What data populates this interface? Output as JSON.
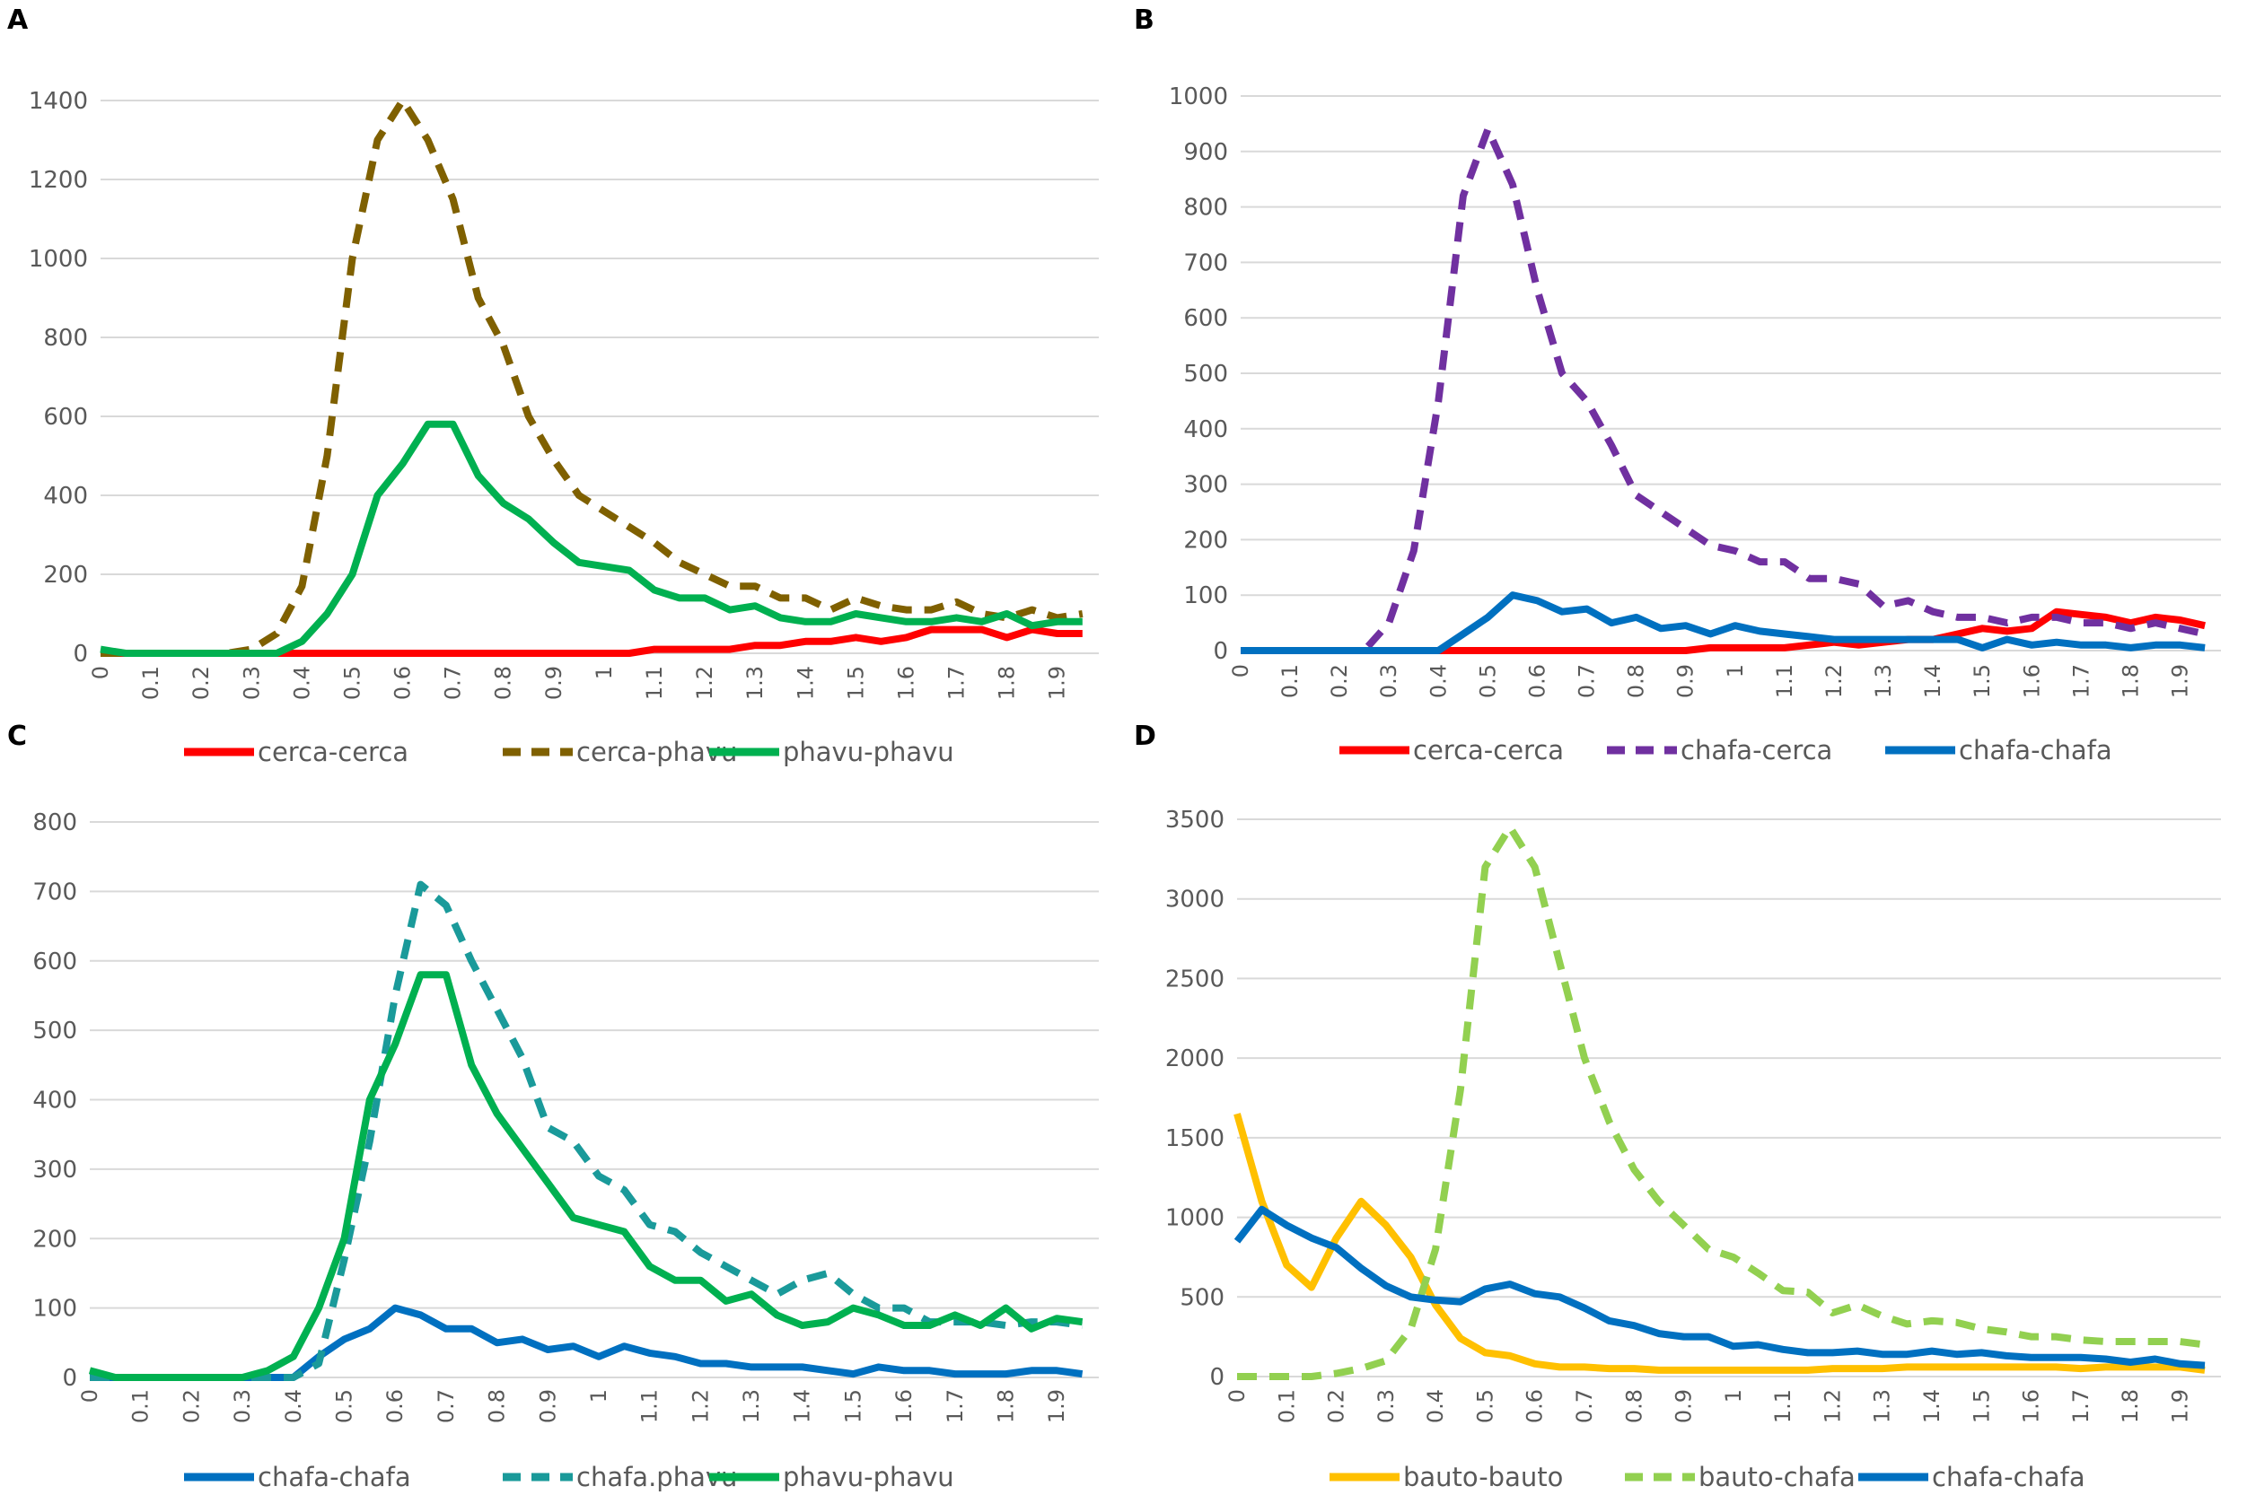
{
  "chart_data": [
    {
      "panel": "A",
      "type": "line",
      "x": [
        0,
        0.05,
        0.1,
        0.15,
        0.2,
        0.25,
        0.3,
        0.35,
        0.4,
        0.45,
        0.5,
        0.55,
        0.6,
        0.65,
        0.7,
        0.75,
        0.8,
        0.85,
        0.9,
        0.95,
        1.0,
        1.05,
        1.1,
        1.15,
        1.2,
        1.25,
        1.3,
        1.35,
        1.4,
        1.45,
        1.5,
        1.55,
        1.6,
        1.65,
        1.7,
        1.75,
        1.8,
        1.85,
        1.9,
        1.95
      ],
      "x_tick_labels": [
        "0",
        "0.1",
        "0.2",
        "0.3",
        "0.4",
        "0.5",
        "0.6",
        "0.7",
        "0.8",
        "0.9",
        "1",
        "1.1",
        "1.2",
        "1.3",
        "1.4",
        "1.5",
        "1.6",
        "1.7",
        "1.8",
        "1.9"
      ],
      "ylim": [
        0,
        1400
      ],
      "yticks": [
        0,
        200,
        400,
        600,
        800,
        1000,
        1200,
        1400
      ],
      "series": [
        {
          "name": "cerca-cerca",
          "color": "#ff0000",
          "dash": "solid",
          "values": [
            0,
            0,
            0,
            0,
            0,
            0,
            0,
            0,
            0,
            0,
            0,
            0,
            0,
            0,
            0,
            0,
            0,
            0,
            0,
            0,
            0,
            0,
            10,
            10,
            10,
            10,
            20,
            20,
            30,
            30,
            40,
            30,
            40,
            60,
            60,
            60,
            40,
            60,
            50,
            50
          ]
        },
        {
          "name": "cerca-phavu",
          "color": "#7f6000",
          "dash": "dashed",
          "values": [
            0,
            0,
            0,
            0,
            0,
            0,
            10,
            50,
            170,
            500,
            1000,
            1300,
            1400,
            1300,
            1150,
            900,
            780,
            600,
            490,
            400,
            360,
            320,
            280,
            230,
            200,
            170,
            170,
            140,
            140,
            110,
            140,
            120,
            110,
            110,
            130,
            100,
            90,
            110,
            90,
            100
          ]
        },
        {
          "name": "phavu-phavu",
          "color": "#00b050",
          "dash": "solid",
          "values": [
            10,
            0,
            0,
            0,
            0,
            0,
            0,
            0,
            30,
            100,
            200,
            400,
            480,
            580,
            580,
            450,
            380,
            340,
            280,
            230,
            220,
            210,
            160,
            140,
            140,
            110,
            120,
            90,
            80,
            80,
            100,
            90,
            80,
            80,
            90,
            80,
            100,
            70,
            80,
            80
          ]
        }
      ]
    },
    {
      "panel": "B",
      "type": "line",
      "x": [
        0,
        0.05,
        0.1,
        0.15,
        0.2,
        0.25,
        0.3,
        0.35,
        0.4,
        0.45,
        0.5,
        0.55,
        0.6,
        0.65,
        0.7,
        0.75,
        0.8,
        0.85,
        0.9,
        0.95,
        1.0,
        1.05,
        1.1,
        1.15,
        1.2,
        1.25,
        1.3,
        1.35,
        1.4,
        1.45,
        1.5,
        1.55,
        1.6,
        1.65,
        1.7,
        1.75,
        1.8,
        1.85,
        1.9,
        1.95
      ],
      "x_tick_labels": [
        "0",
        "0.1",
        "0.2",
        "0.3",
        "0.4",
        "0.5",
        "0.6",
        "0.7",
        "0.8",
        "0.9",
        "1",
        "1.1",
        "1.2",
        "1.3",
        "1.4",
        "1.5",
        "1.6",
        "1.7",
        "1.8",
        "1.9"
      ],
      "ylim": [
        0,
        1000
      ],
      "yticks": [
        0,
        100,
        200,
        300,
        400,
        500,
        600,
        700,
        800,
        900,
        1000
      ],
      "series": [
        {
          "name": "cerca-cerca",
          "color": "#ff0000",
          "dash": "solid",
          "values": [
            0,
            0,
            0,
            0,
            0,
            0,
            0,
            0,
            0,
            0,
            0,
            0,
            0,
            0,
            0,
            0,
            0,
            0,
            0,
            5,
            5,
            5,
            5,
            10,
            15,
            10,
            15,
            20,
            20,
            30,
            40,
            35,
            40,
            70,
            65,
            60,
            50,
            60,
            55,
            45
          ]
        },
        {
          "name": "chafa-cerca",
          "color": "#7030a0",
          "dash": "dashed",
          "values": [
            0,
            0,
            0,
            0,
            0,
            0,
            50,
            180,
            450,
            820,
            940,
            840,
            650,
            500,
            450,
            370,
            280,
            250,
            220,
            190,
            180,
            160,
            160,
            130,
            130,
            120,
            80,
            90,
            70,
            60,
            60,
            50,
            60,
            60,
            50,
            50,
            40,
            50,
            40,
            30
          ]
        },
        {
          "name": "chafa-chafa",
          "color": "#0070c0",
          "dash": "solid",
          "values": [
            0,
            0,
            0,
            0,
            0,
            0,
            0,
            0,
            0,
            30,
            60,
            100,
            90,
            70,
            75,
            50,
            60,
            40,
            45,
            30,
            45,
            35,
            30,
            25,
            20,
            20,
            20,
            20,
            20,
            20,
            5,
            20,
            10,
            15,
            10,
            10,
            5,
            10,
            10,
            5
          ]
        }
      ]
    },
    {
      "panel": "C",
      "type": "line",
      "x": [
        0,
        0.05,
        0.1,
        0.15,
        0.2,
        0.25,
        0.3,
        0.35,
        0.4,
        0.45,
        0.5,
        0.55,
        0.6,
        0.65,
        0.7,
        0.75,
        0.8,
        0.85,
        0.9,
        0.95,
        1.0,
        1.05,
        1.1,
        1.15,
        1.2,
        1.25,
        1.3,
        1.35,
        1.4,
        1.45,
        1.5,
        1.55,
        1.6,
        1.65,
        1.7,
        1.75,
        1.8,
        1.85,
        1.9,
        1.95
      ],
      "x_tick_labels": [
        "0",
        "0.1",
        "0.2",
        "0.3",
        "0.4",
        "0.5",
        "0.6",
        "0.7",
        "0.8",
        "0.9",
        "1",
        "1.1",
        "1.2",
        "1.3",
        "1.4",
        "1.5",
        "1.6",
        "1.7",
        "1.8",
        "1.9"
      ],
      "ylim": [
        0,
        800
      ],
      "yticks": [
        0,
        100,
        200,
        300,
        400,
        500,
        600,
        700,
        800
      ],
      "series": [
        {
          "name": "chafa-chafa",
          "color": "#0070c0",
          "dash": "solid",
          "values": [
            0,
            0,
            0,
            0,
            0,
            0,
            0,
            0,
            0,
            30,
            55,
            70,
            100,
            90,
            70,
            70,
            50,
            55,
            40,
            45,
            30,
            45,
            35,
            30,
            20,
            20,
            15,
            15,
            15,
            10,
            5,
            15,
            10,
            10,
            5,
            5,
            5,
            10,
            10,
            5
          ]
        },
        {
          "name": "chafa.phavu",
          "color": "#1a9a9a",
          "dash": "dashed",
          "values": [
            0,
            0,
            0,
            0,
            0,
            0,
            0,
            0,
            0,
            20,
            170,
            340,
            550,
            710,
            680,
            600,
            530,
            460,
            360,
            340,
            290,
            270,
            220,
            210,
            180,
            160,
            140,
            120,
            140,
            150,
            120,
            100,
            100,
            80,
            80,
            80,
            75,
            80,
            80,
            75
          ]
        },
        {
          "name": "phavu-phavu",
          "color": "#00b050",
          "dash": "solid",
          "values": [
            10,
            0,
            0,
            0,
            0,
            0,
            0,
            10,
            30,
            100,
            200,
            400,
            480,
            580,
            580,
            450,
            380,
            330,
            280,
            230,
            220,
            210,
            160,
            140,
            140,
            110,
            120,
            90,
            75,
            80,
            100,
            90,
            75,
            75,
            90,
            75,
            100,
            70,
            85,
            80
          ]
        }
      ]
    },
    {
      "panel": "D",
      "type": "line",
      "x": [
        0,
        0.05,
        0.1,
        0.15,
        0.2,
        0.25,
        0.3,
        0.35,
        0.4,
        0.45,
        0.5,
        0.55,
        0.6,
        0.65,
        0.7,
        0.75,
        0.8,
        0.85,
        0.9,
        0.95,
        1.0,
        1.05,
        1.1,
        1.15,
        1.2,
        1.25,
        1.3,
        1.35,
        1.4,
        1.45,
        1.5,
        1.55,
        1.6,
        1.65,
        1.7,
        1.75,
        1.8,
        1.85,
        1.9,
        1.95
      ],
      "x_tick_labels": [
        "0",
        "0.1",
        "0.2",
        "0.3",
        "0.4",
        "0.5",
        "0.6",
        "0.7",
        "0.8",
        "0.9",
        "1",
        "1.1",
        "1.2",
        "1.3",
        "1.4",
        "1.5",
        "1.6",
        "1.7",
        "1.8",
        "1.9"
      ],
      "ylim": [
        0,
        3500
      ],
      "yticks": [
        0,
        500,
        1000,
        1500,
        2000,
        2500,
        3000,
        3500
      ],
      "series": [
        {
          "name": "bauto-bauto",
          "color": "#ffc000",
          "dash": "solid",
          "values": [
            1650,
            1100,
            700,
            560,
            870,
            1100,
            950,
            750,
            450,
            240,
            150,
            130,
            80,
            60,
            60,
            50,
            50,
            40,
            40,
            40,
            40,
            40,
            40,
            40,
            50,
            50,
            50,
            60,
            60,
            60,
            60,
            60,
            60,
            60,
            50,
            60,
            60,
            60,
            60,
            40
          ]
        },
        {
          "name": "bauto-chafa",
          "color": "#92d050",
          "dash": "dashed",
          "values": [
            0,
            0,
            0,
            0,
            20,
            50,
            100,
            300,
            800,
            1800,
            3200,
            3450,
            3200,
            2600,
            2000,
            1600,
            1300,
            1100,
            950,
            800,
            750,
            650,
            540,
            530,
            400,
            450,
            380,
            330,
            350,
            340,
            300,
            280,
            250,
            250,
            230,
            220,
            220,
            220,
            220,
            200
          ]
        },
        {
          "name": "chafa-chafa",
          "color": "#0070c0",
          "dash": "solid",
          "values": [
            850,
            1050,
            950,
            870,
            810,
            680,
            570,
            500,
            480,
            470,
            550,
            580,
            520,
            500,
            430,
            350,
            320,
            270,
            250,
            250,
            190,
            200,
            170,
            150,
            150,
            160,
            140,
            140,
            160,
            140,
            150,
            130,
            120,
            120,
            120,
            110,
            90,
            110,
            80,
            70
          ]
        }
      ]
    }
  ]
}
